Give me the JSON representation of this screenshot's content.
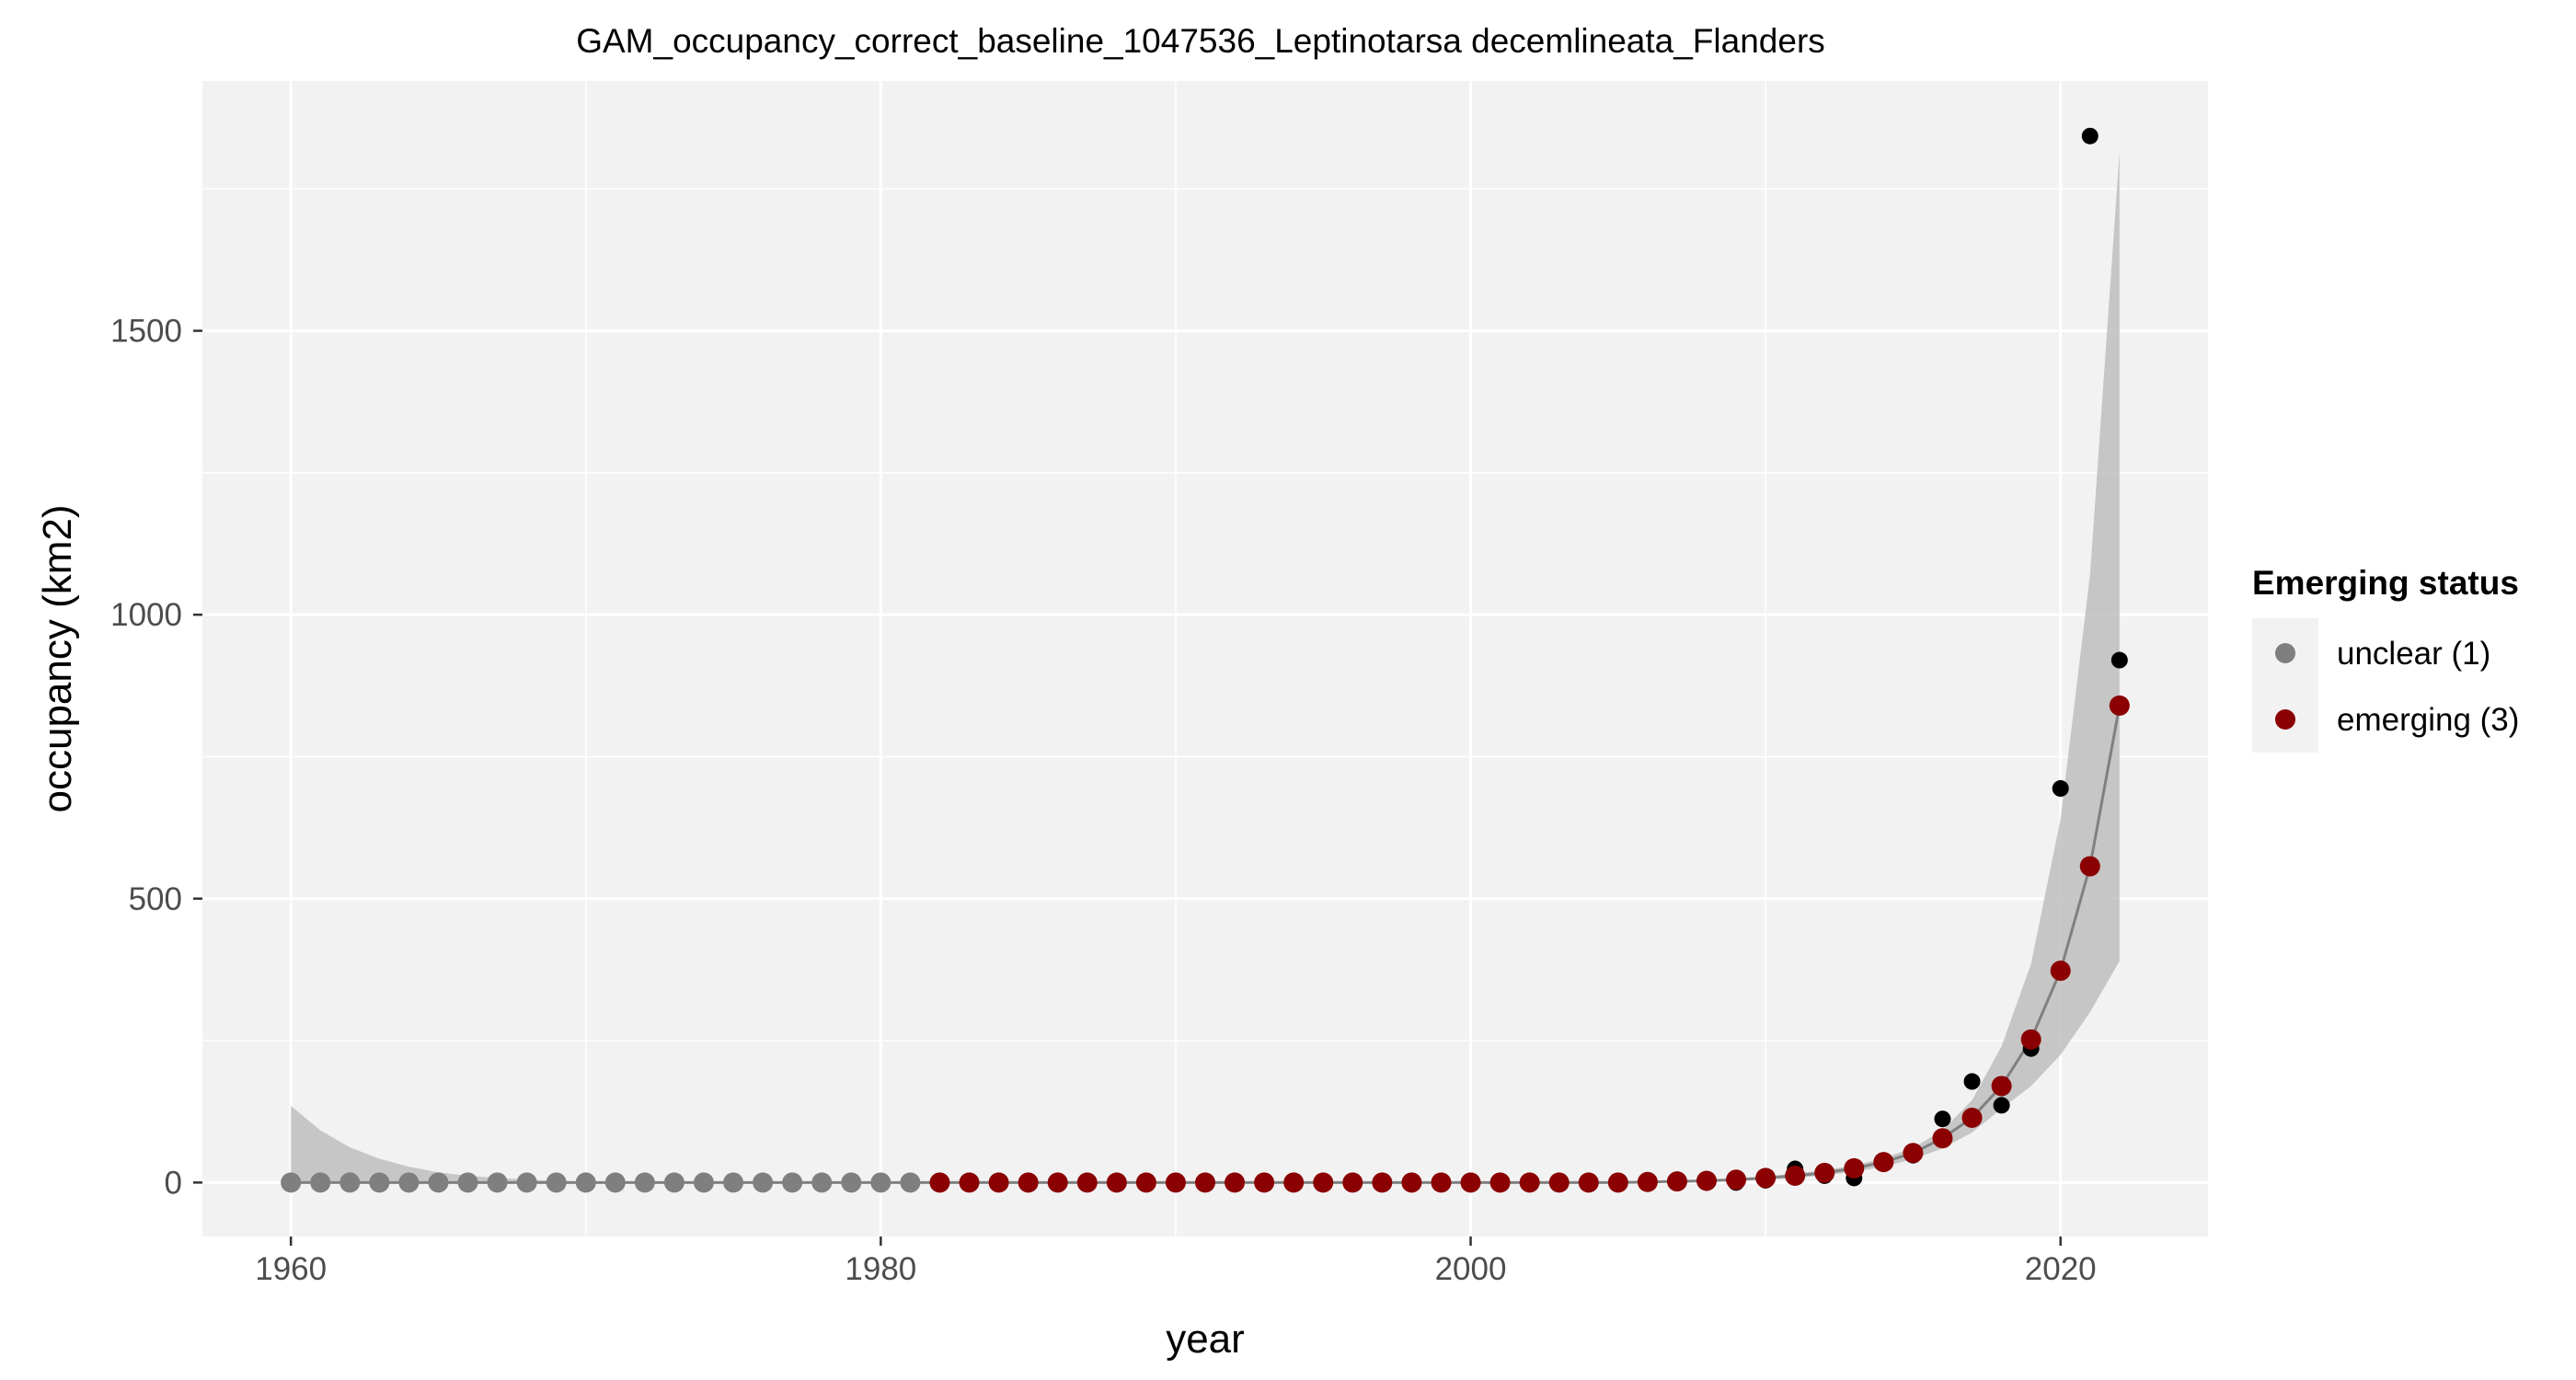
{
  "chart_data": {
    "type": "scatter",
    "title": "GAM_occupancy_correct_baseline_1047536_Leptinotarsa decemlineata_Flanders",
    "xlabel": "year",
    "ylabel": "occupancy (km2)",
    "xlim": [
      1957,
      2025
    ],
    "ylim": [
      -95,
      1940
    ],
    "x_ticks": [
      1960,
      1980,
      2000,
      2020
    ],
    "y_ticks": [
      0,
      500,
      1000,
      1500
    ],
    "grid": true,
    "legend": {
      "title": "Emerging status",
      "position": "right",
      "entries": [
        {
          "label": "unclear (1)",
          "color": "#7f7f7f"
        },
        {
          "label": "emerging (3)",
          "color": "#8b0000"
        }
      ]
    },
    "observed": {
      "x": [
        1960,
        1961,
        1962,
        1963,
        1964,
        1965,
        1966,
        1967,
        1968,
        1969,
        1970,
        1971,
        1972,
        1973,
        1974,
        1975,
        1976,
        1977,
        1978,
        1979,
        1980,
        1981,
        1982,
        1983,
        1984,
        1985,
        1986,
        1987,
        1988,
        1989,
        1990,
        1991,
        1992,
        1993,
        1994,
        1995,
        1996,
        1997,
        1998,
        1999,
        2000,
        2001,
        2002,
        2003,
        2004,
        2005,
        2006,
        2007,
        2008,
        2009,
        2010,
        2011,
        2012,
        2013,
        2014,
        2015,
        2016,
        2017,
        2018,
        2019,
        2020,
        2021,
        2022
      ],
      "y": [
        0,
        0,
        0,
        0,
        0,
        0,
        0,
        0,
        0,
        0,
        0,
        0,
        0,
        0,
        0,
        0,
        0,
        0,
        0,
        0,
        0,
        0,
        0,
        0,
        0,
        0,
        0,
        0,
        0,
        0,
        0,
        0,
        0,
        0,
        0,
        0,
        0,
        0,
        0,
        0,
        0,
        0,
        0,
        0,
        0,
        0,
        0,
        0,
        0,
        0,
        4,
        24,
        12,
        8,
        36,
        48,
        112,
        178,
        136,
        236,
        694,
        1843,
        920
      ],
      "color": "#000000"
    },
    "fitted": {
      "x": [
        1960,
        1961,
        1962,
        1963,
        1964,
        1965,
        1966,
        1967,
        1968,
        1969,
        1970,
        1971,
        1972,
        1973,
        1974,
        1975,
        1976,
        1977,
        1978,
        1979,
        1980,
        1981,
        1982,
        1983,
        1984,
        1985,
        1986,
        1987,
        1988,
        1989,
        1990,
        1991,
        1992,
        1993,
        1994,
        1995,
        1996,
        1997,
        1998,
        1999,
        2000,
        2001,
        2002,
        2003,
        2004,
        2005,
        2006,
        2007,
        2008,
        2009,
        2010,
        2011,
        2012,
        2013,
        2014,
        2015,
        2016,
        2017,
        2018,
        2019,
        2020,
        2021,
        2022
      ],
      "y": [
        0,
        0,
        0,
        0,
        0,
        0,
        0,
        0,
        0,
        0,
        0,
        0,
        0,
        0,
        0,
        0,
        0,
        0,
        0,
        0,
        0,
        0,
        0,
        0,
        0,
        0,
        0,
        0,
        0,
        0,
        0,
        0,
        0,
        0,
        0,
        0,
        0,
        0,
        0,
        0,
        0,
        0,
        0,
        0,
        0,
        0,
        1,
        2,
        3,
        5,
        8,
        12,
        17,
        25,
        36,
        52,
        78,
        114,
        170,
        252,
        373,
        557,
        840
      ],
      "status": [
        "unclear (1)",
        "unclear (1)",
        "unclear (1)",
        "unclear (1)",
        "unclear (1)",
        "unclear (1)",
        "unclear (1)",
        "unclear (1)",
        "unclear (1)",
        "unclear (1)",
        "unclear (1)",
        "unclear (1)",
        "unclear (1)",
        "unclear (1)",
        "unclear (1)",
        "unclear (1)",
        "unclear (1)",
        "unclear (1)",
        "unclear (1)",
        "unclear (1)",
        "unclear (1)",
        "unclear (1)",
        "emerging (3)",
        "emerging (3)",
        "emerging (3)",
        "emerging (3)",
        "emerging (3)",
        "emerging (3)",
        "emerging (3)",
        "emerging (3)",
        "emerging (3)",
        "emerging (3)",
        "emerging (3)",
        "emerging (3)",
        "emerging (3)",
        "emerging (3)",
        "emerging (3)",
        "emerging (3)",
        "emerging (3)",
        "emerging (3)",
        "emerging (3)",
        "emerging (3)",
        "emerging (3)",
        "emerging (3)",
        "emerging (3)",
        "emerging (3)",
        "emerging (3)",
        "emerging (3)",
        "emerging (3)",
        "emerging (3)",
        "emerging (3)",
        "emerging (3)",
        "emerging (3)",
        "emerging (3)",
        "emerging (3)",
        "emerging (3)",
        "emerging (3)",
        "emerging (3)",
        "emerging (3)",
        "emerging (3)",
        "emerging (3)",
        "emerging (3)",
        "emerging (3)"
      ]
    },
    "confidence_band": {
      "x": [
        1960,
        1961,
        1962,
        1963,
        1964,
        1965,
        1966,
        1967,
        1968,
        1969,
        1970,
        1975,
        1980,
        1985,
        1990,
        1995,
        2000,
        2005,
        2006,
        2007,
        2008,
        2009,
        2010,
        2011,
        2012,
        2013,
        2014,
        2015,
        2016,
        2017,
        2018,
        2019,
        2020,
        2021,
        2022
      ],
      "lower": [
        0,
        0,
        0,
        0,
        0,
        0,
        0,
        0,
        0,
        0,
        0,
        0,
        0,
        0,
        0,
        0,
        0,
        0,
        0,
        1,
        2,
        3,
        5,
        8,
        13,
        19,
        28,
        41,
        60,
        88,
        130,
        170,
        225,
        300,
        390
      ],
      "upper": [
        135,
        92,
        62,
        42,
        28,
        18,
        12,
        8,
        5,
        3,
        2,
        1,
        1,
        1,
        1,
        1,
        1,
        1,
        2,
        3,
        5,
        7,
        11,
        16,
        22,
        30,
        43,
        61,
        92,
        145,
        240,
        385,
        640,
        1070,
        1815
      ],
      "color": "#bebebe"
    }
  }
}
